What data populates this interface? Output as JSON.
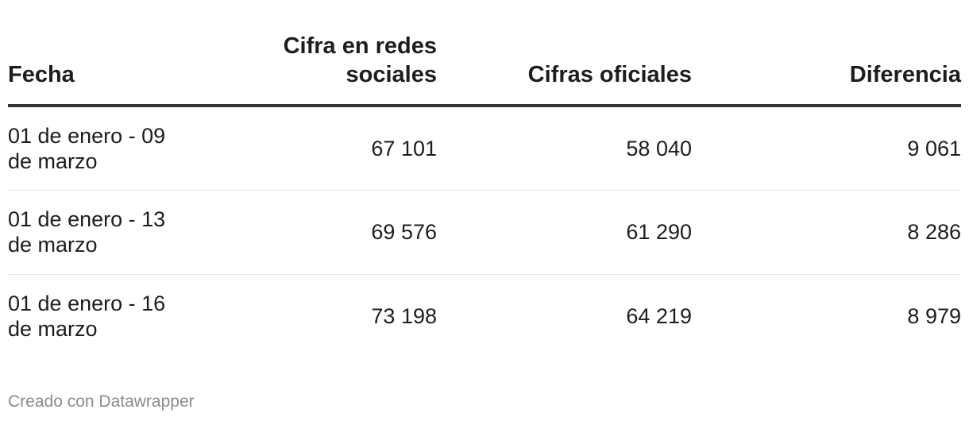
{
  "chart_data": {
    "type": "table",
    "columns": [
      "Fecha",
      "Cifra en redes sociales",
      "Cifras oficiales",
      "Diferencia"
    ],
    "rows": [
      [
        "01 de enero - 09 de marzo",
        "67 101",
        "58 040",
        "9 061"
      ],
      [
        "01 de enero - 13 de marzo",
        "69 576",
        "61 290",
        "8 286"
      ],
      [
        "01 de enero - 16 de marzo",
        "73 198",
        "64 219",
        "8 979"
      ]
    ]
  },
  "footer": {
    "credit": "Creado con Datawrapper"
  }
}
